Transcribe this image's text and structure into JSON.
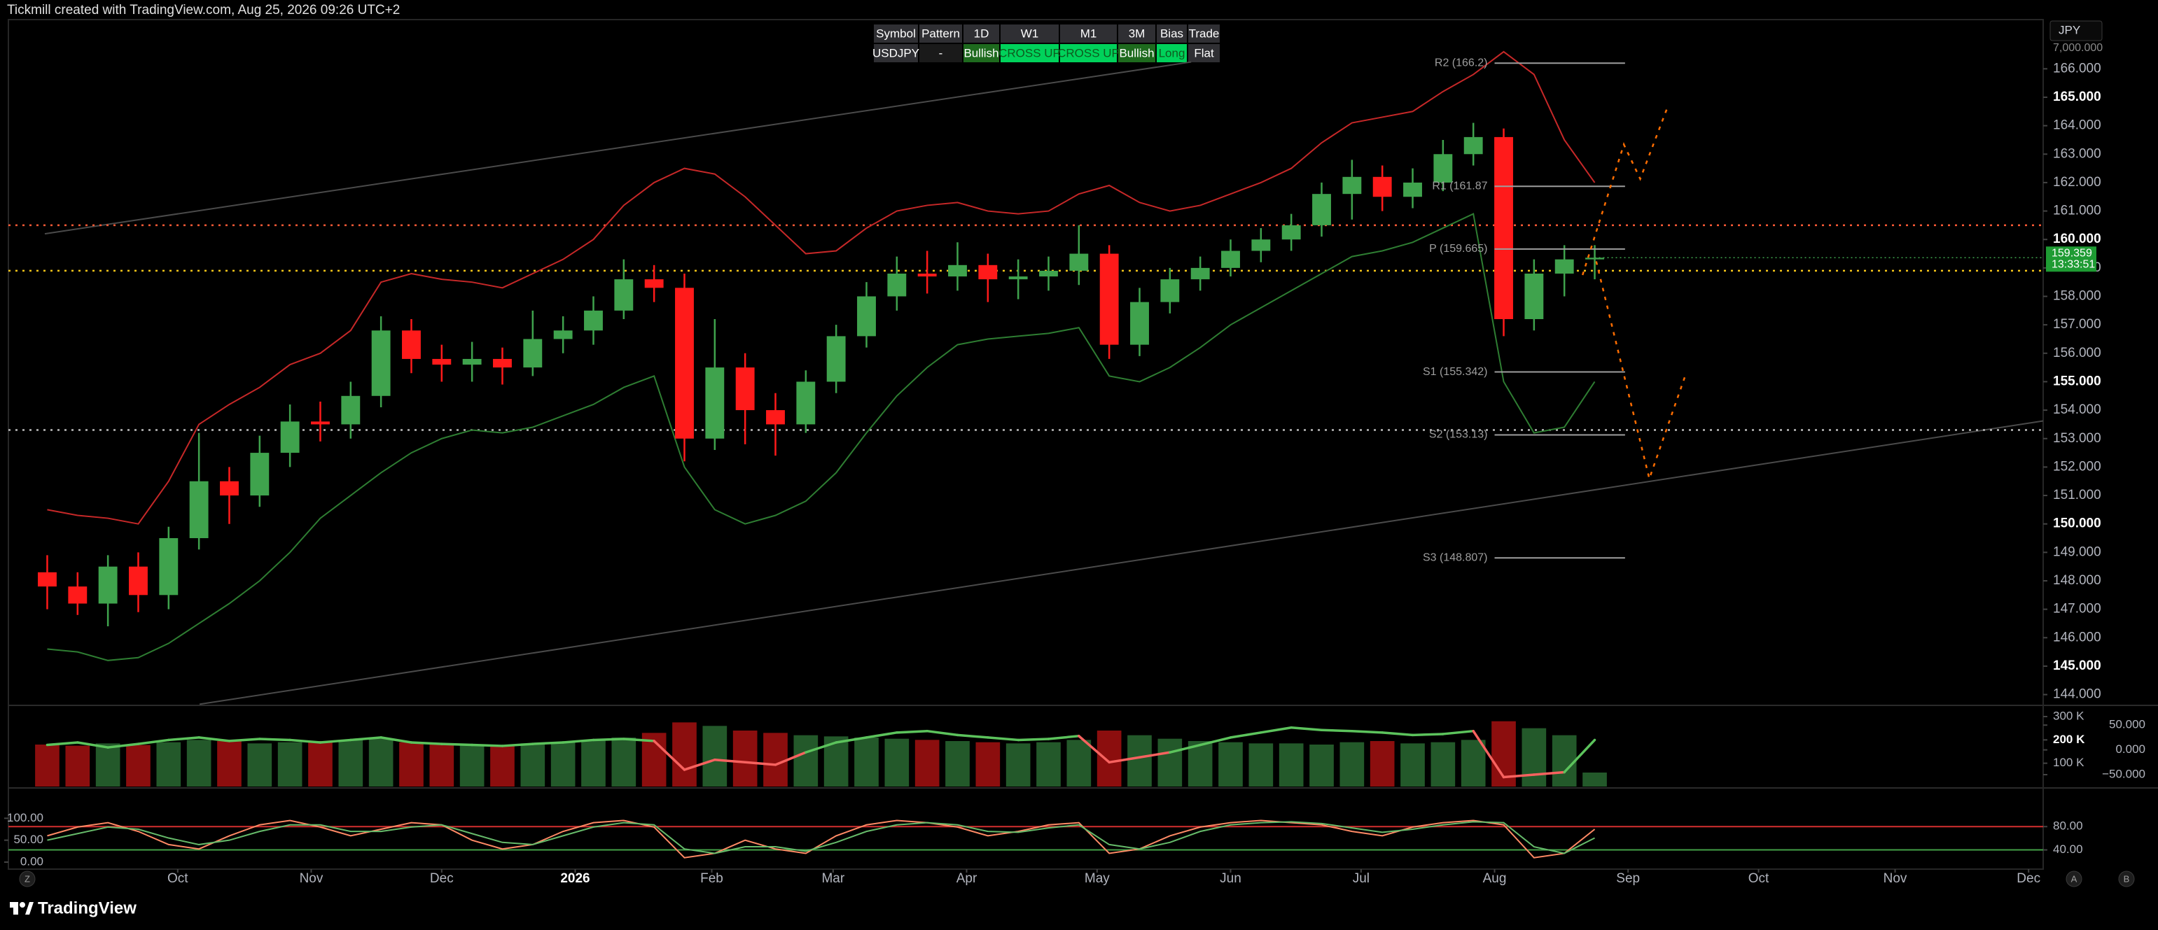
{
  "header": {
    "title": "Tickmill created with TradingView.com, Aug 25, 2026 09:26 UTC+2"
  },
  "currency": "JPY",
  "table": {
    "header": [
      "Symbol",
      "Pattern",
      "1D",
      "W1",
      "M1",
      "3M",
      "Bias",
      "Trade"
    ],
    "header_color": "#2f2f33",
    "rows": [
      [
        "USDJPY",
        "-",
        "Bullish",
        "CROSS UP",
        "CROSS UP",
        "Bullish",
        "Long",
        "Flat"
      ]
    ],
    "row_colors": [
      "#2f2f33",
      "#1a1a1a",
      "#1e6a1e",
      "#00d25b",
      "#00d25b",
      "#1e6a1e",
      "#00d25b",
      "#2f2f33"
    ],
    "row_text_colors": [
      "#ffffff",
      "#ffffff",
      "#ffffff",
      "#0e5a1e",
      "#0e5a1e",
      "#ffffff",
      "#0e5a1e",
      "#ffffff"
    ]
  },
  "chart_data": [
    {
      "type": "candlestick",
      "x": [
        0,
        1,
        2,
        3,
        4,
        5,
        6,
        7,
        8,
        9,
        10,
        11,
        12,
        13,
        14,
        15,
        16,
        17,
        18,
        19,
        20,
        21,
        22,
        23,
        24,
        25,
        26,
        27,
        28,
        29,
        30,
        31,
        32,
        33,
        34,
        35,
        36,
        37,
        38,
        39,
        40,
        41,
        42,
        43,
        44,
        45,
        46,
        47,
        48,
        49,
        50,
        51
      ],
      "open": [
        148.3,
        147.8,
        147.2,
        148.5,
        147.5,
        149.5,
        151.5,
        151.0,
        152.5,
        153.6,
        153.5,
        154.5,
        156.8,
        155.8,
        155.6,
        155.8,
        155.5,
        156.5,
        156.8,
        157.5,
        158.6,
        158.3,
        153.0,
        155.5,
        154.0,
        153.5,
        155.0,
        156.6,
        158.0,
        158.8,
        158.7,
        159.1,
        158.6,
        158.7,
        158.9,
        159.5,
        156.3,
        157.8,
        158.6,
        159.0,
        159.6,
        160.0,
        160.5,
        161.6,
        162.2,
        161.5,
        162.0,
        163.0,
        163.6,
        157.2,
        158.8,
        159.3
      ],
      "high": [
        148.9,
        148.3,
        148.9,
        149.0,
        149.9,
        153.2,
        152.0,
        153.1,
        154.2,
        154.3,
        155.0,
        157.3,
        157.2,
        156.3,
        156.4,
        156.2,
        157.5,
        157.3,
        158.0,
        159.3,
        159.1,
        158.8,
        157.2,
        156.0,
        154.6,
        155.4,
        157.0,
        158.5,
        159.4,
        159.6,
        159.9,
        159.5,
        159.3,
        159.4,
        160.5,
        159.8,
        158.3,
        159.0,
        159.4,
        160.0,
        160.4,
        160.9,
        162.0,
        162.8,
        162.6,
        162.5,
        163.5,
        164.1,
        163.9,
        159.3,
        159.8,
        159.8
      ],
      "low": [
        147.0,
        146.8,
        146.4,
        146.9,
        147.0,
        149.1,
        150.0,
        150.6,
        152.0,
        152.9,
        153.0,
        154.1,
        155.3,
        155.0,
        155.0,
        154.9,
        155.2,
        156.0,
        156.3,
        157.2,
        157.8,
        152.2,
        152.6,
        152.8,
        152.4,
        153.2,
        154.6,
        156.2,
        157.5,
        158.1,
        158.2,
        157.8,
        157.9,
        158.2,
        158.4,
        155.8,
        155.9,
        157.4,
        158.2,
        158.7,
        159.2,
        159.6,
        160.1,
        160.7,
        161.0,
        161.1,
        161.7,
        162.6,
        156.6,
        156.8,
        158.0,
        158.6
      ],
      "close": [
        147.8,
        147.2,
        148.5,
        147.5,
        149.5,
        151.5,
        151.0,
        152.5,
        153.6,
        153.5,
        154.5,
        156.8,
        155.8,
        155.6,
        155.8,
        155.5,
        156.5,
        156.8,
        157.5,
        158.6,
        158.3,
        153.0,
        155.5,
        154.0,
        153.5,
        155.0,
        156.6,
        158.0,
        158.8,
        158.7,
        159.1,
        158.6,
        158.7,
        158.9,
        159.5,
        156.3,
        157.8,
        158.6,
        159.0,
        159.6,
        160.0,
        160.5,
        161.6,
        162.2,
        161.5,
        162.0,
        163.0,
        163.6,
        157.2,
        158.8,
        159.3,
        159.359
      ],
      "up_color": "#3fa34d",
      "down_color": "#ff1a1a",
      "xlim": [
        -1.28,
        65.78
      ],
      "xticks": [
        {
          "value": 4.3,
          "label": "Oct"
        },
        {
          "value": 8.7,
          "label": "Nov"
        },
        {
          "value": 13.0,
          "label": "Dec"
        },
        {
          "value": 17.4,
          "label": "2026"
        },
        {
          "value": 21.9,
          "label": "Feb"
        },
        {
          "value": 25.9,
          "label": "Mar"
        },
        {
          "value": 30.3,
          "label": "Apr"
        },
        {
          "value": 34.6,
          "label": "May"
        },
        {
          "value": 39.0,
          "label": "Jun"
        },
        {
          "value": 43.3,
          "label": "Jul"
        },
        {
          "value": 47.7,
          "label": "Aug"
        },
        {
          "value": 52.1,
          "label": "Sep"
        },
        {
          "value": 56.4,
          "label": "Oct"
        },
        {
          "value": 60.9,
          "label": "Nov"
        },
        {
          "value": 65.3,
          "label": "Dec"
        }
      ],
      "ylim": [
        143.67,
        167.73
      ],
      "yticks": [
        {
          "value": 144,
          "label": "144.000"
        },
        {
          "value": 145,
          "label": "145.000"
        },
        {
          "value": 146,
          "label": "146.000"
        },
        {
          "value": 147,
          "label": "147.000"
        },
        {
          "value": 148,
          "label": "148.000"
        },
        {
          "value": 149,
          "label": "149.000"
        },
        {
          "value": 150,
          "label": "150.000"
        },
        {
          "value": 151,
          "label": "151.000"
        },
        {
          "value": 152,
          "label": "152.000"
        },
        {
          "value": 153,
          "label": "153.000"
        },
        {
          "value": 154,
          "label": "154.000"
        },
        {
          "value": 155,
          "label": "155.000"
        },
        {
          "value": 156,
          "label": "156.000"
        },
        {
          "value": 157,
          "label": "157.000"
        },
        {
          "value": 158,
          "label": "158.000"
        },
        {
          "value": 159,
          "label": "159.000"
        },
        {
          "value": 160,
          "label": "160.000"
        },
        {
          "value": 161,
          "label": "161.000"
        },
        {
          "value": 162,
          "label": "162.000"
        },
        {
          "value": 163,
          "label": "163.000"
        },
        {
          "value": 164,
          "label": "164.000"
        },
        {
          "value": 165,
          "label": "165.000"
        },
        {
          "value": 166,
          "label": "166.000"
        }
      ],
      "grid": false,
      "extra_label": "7,000.000",
      "last_price": 159.359,
      "countdown": "13:33:51",
      "bands": [
        {
          "color": "#c62828",
          "values": [
            150.5,
            150.3,
            150.2,
            150.0,
            151.5,
            153.5,
            154.2,
            154.8,
            155.6,
            156.0,
            156.8,
            158.5,
            158.8,
            158.6,
            158.5,
            158.3,
            158.8,
            159.3,
            160.0,
            161.2,
            162.0,
            162.5,
            162.3,
            161.5,
            160.5,
            159.5,
            159.6,
            160.4,
            161.0,
            161.2,
            161.3,
            161.0,
            160.9,
            161.0,
            161.6,
            161.9,
            161.3,
            161.0,
            161.2,
            161.6,
            162.0,
            162.5,
            163.4,
            164.1,
            164.3,
            164.5,
            165.2,
            165.8,
            166.6,
            165.8,
            163.5,
            162.0
          ]
        },
        {
          "color": "#2e7d32",
          "values": [
            145.6,
            145.5,
            145.2,
            145.3,
            145.8,
            146.5,
            147.2,
            148.0,
            149.0,
            150.2,
            151.0,
            151.8,
            152.5,
            153.0,
            153.3,
            153.2,
            153.4,
            153.8,
            154.2,
            154.8,
            155.2,
            152.0,
            150.5,
            150.0,
            150.3,
            150.8,
            151.8,
            153.2,
            154.5,
            155.5,
            156.3,
            156.5,
            156.6,
            156.7,
            156.9,
            155.2,
            155.0,
            155.5,
            156.2,
            157.0,
            157.6,
            158.2,
            158.8,
            159.4,
            159.6,
            159.9,
            160.4,
            160.9,
            155.0,
            153.2,
            153.4,
            155.0
          ]
        }
      ],
      "levels": [
        {
          "value": 160.5,
          "color": "#ff5a36"
        },
        {
          "value": 158.9,
          "color": "#f5c518"
        },
        {
          "value": 153.3,
          "color": "#bdbdbd"
        }
      ],
      "trendlines": [
        {
          "x": [
            -0.08,
            37.7
          ],
          "y": [
            160.2,
            166.24
          ],
          "color": "#4a4a4a"
        },
        {
          "x": [
            5.02,
            65.78
          ],
          "y": [
            143.66,
            153.62
          ],
          "color": "#4a4a4a"
        }
      ],
      "projection": [
        {
          "x": [
            50.6,
            51.96,
            52.5,
            53.4
          ],
          "y": [
            158.75,
            163.34,
            162.13,
            164.65
          ],
          "color": "#ff6d00"
        },
        {
          "x": [
            51.05,
            52.8,
            54.0
          ],
          "y": [
            159.23,
            151.59,
            155.26
          ],
          "color": "#ff6d00"
        }
      ],
      "pivot_x": [
        47.7,
        52.0
      ],
      "pivots": [
        {
          "label": "R2 (166.2)",
          "value": 166.2
        },
        {
          "label": "R1 (161.87",
          "value": 161.87
        },
        {
          "label": "P (159.665)",
          "value": 159.665
        },
        {
          "label": "S1 (155.342)",
          "value": 155.342
        },
        {
          "label": "S2 (153.13)",
          "value": 153.13
        },
        {
          "label": "S3 (148.807)",
          "value": 148.807
        }
      ]
    },
    {
      "type": "bar",
      "values": [
        180000,
        175000,
        185000,
        178000,
        190000,
        200000,
        195000,
        185000,
        190000,
        195000,
        200000,
        205000,
        190000,
        185000,
        180000,
        175000,
        185000,
        190000,
        200000,
        210000,
        230000,
        275000,
        260000,
        240000,
        230000,
        220000,
        215000,
        210000,
        205000,
        200000,
        195000,
        190000,
        185000,
        190000,
        200000,
        240000,
        220000,
        205000,
        195000,
        190000,
        185000,
        185000,
        180000,
        190000,
        195000,
        185000,
        190000,
        200000,
        280000,
        250000,
        220000,
        60000
      ],
      "ylim": [
        0,
        342000
      ],
      "yticks": [
        {
          "value": 300000,
          "label": "300 K"
        },
        {
          "value": 200000,
          "label": "200 K"
        },
        {
          "value": 100000,
          "label": "100 K"
        }
      ],
      "y2lim": [
        -74,
        87
      ],
      "y2ticks": [
        {
          "value": 50,
          "label": "50.000"
        },
        {
          "value": 0,
          "label": "0.000"
        },
        {
          "value": -50,
          "label": "−50.000"
        }
      ],
      "series": [
        {
          "axis": "y2",
          "color": "#5cc35c",
          "negative_color": "#f7625f",
          "values": [
            10,
            15,
            5,
            12,
            20,
            25,
            18,
            22,
            20,
            15,
            20,
            25,
            15,
            12,
            10,
            8,
            12,
            15,
            20,
            22,
            18,
            -40,
            -20,
            -25,
            -30,
            -5,
            15,
            25,
            35,
            38,
            30,
            25,
            20,
            22,
            28,
            -25,
            -15,
            -5,
            10,
            25,
            35,
            45,
            40,
            38,
            35,
            30,
            32,
            38,
            -55,
            -50,
            -45,
            20
          ]
        }
      ]
    },
    {
      "type": "line",
      "series": [
        {
          "color": "#ff8a65",
          "values": [
            60,
            80,
            90,
            70,
            40,
            30,
            60,
            85,
            95,
            80,
            60,
            75,
            90,
            85,
            50,
            30,
            40,
            70,
            90,
            95,
            80,
            10,
            20,
            50,
            30,
            20,
            60,
            85,
            95,
            90,
            80,
            60,
            70,
            85,
            90,
            20,
            30,
            60,
            80,
            90,
            95,
            90,
            85,
            70,
            60,
            80,
            90,
            95,
            85,
            10,
            20,
            75
          ]
        },
        {
          "color": "#66bb6a",
          "values": [
            50,
            65,
            80,
            75,
            55,
            40,
            50,
            70,
            85,
            85,
            70,
            70,
            80,
            85,
            65,
            45,
            40,
            60,
            80,
            90,
            85,
            30,
            20,
            35,
            35,
            25,
            45,
            70,
            85,
            90,
            85,
            70,
            68,
            78,
            85,
            40,
            30,
            45,
            70,
            85,
            90,
            92,
            88,
            78,
            68,
            75,
            85,
            92,
            90,
            35,
            20,
            55
          ]
        }
      ],
      "ylim": [
        -16,
        166
      ],
      "yticks": [
        {
          "value": 100,
          "label": "100.00"
        },
        {
          "value": 50,
          "label": "50.00"
        },
        {
          "value": 0,
          "label": "0.00"
        }
      ],
      "y2lim": [
        7,
        144
      ],
      "y2ticks": [
        {
          "value": 80,
          "label": "80.00"
        },
        {
          "value": 40,
          "label": "40.00"
        }
      ],
      "y2tick_colors": [
        "#d32f2f",
        "#43a047"
      ]
    }
  ],
  "buttons": [
    "Z",
    "A",
    "B"
  ],
  "footer": {
    "brand": "TradingView"
  }
}
